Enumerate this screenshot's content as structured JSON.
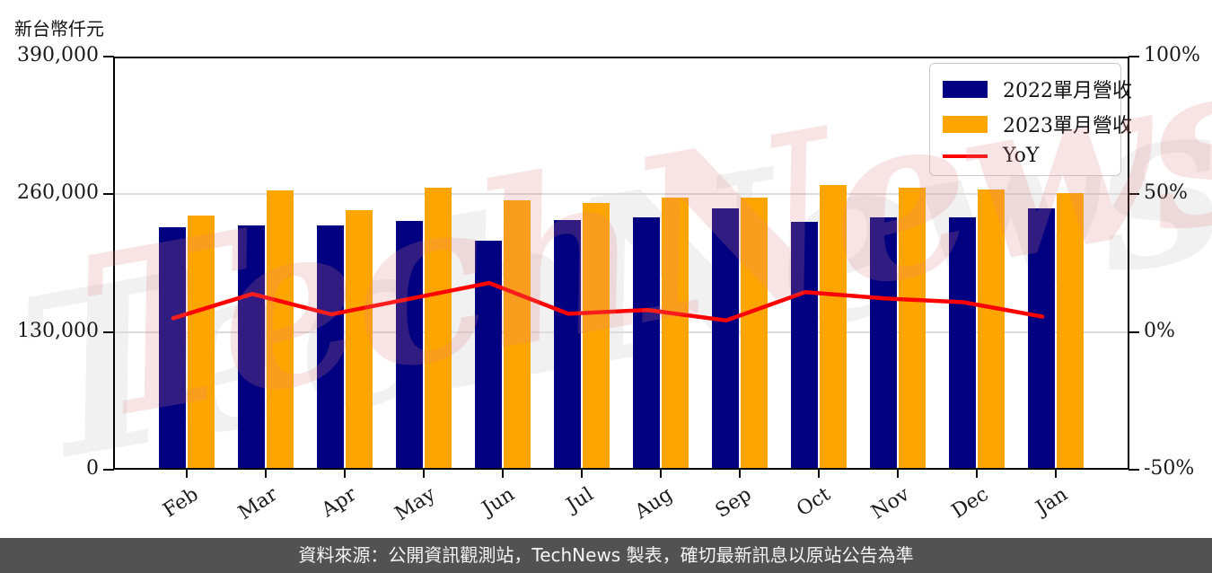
{
  "unit_label": "新台幣仟元",
  "watermark": {
    "text": "TechNews"
  },
  "footer": {
    "text": "資料來源：公開資訊觀測站，TechNews 製表，確切最新訊息以原站公告為準"
  },
  "legend": {
    "items": [
      {
        "label": "2022單月營收",
        "color": "#000080",
        "type": "bar"
      },
      {
        "label": "2023單月營收",
        "color": "#FFA500",
        "type": "bar"
      },
      {
        "label": "YoY",
        "color": "#FF0000",
        "type": "line"
      }
    ]
  },
  "colors": {
    "bar_2022": "#000080",
    "bar_2023": "#FFA500",
    "yoy_line": "#FF0000",
    "grid": "#dcdcdc",
    "spine": "#000000",
    "footer_bg": "#525252",
    "watermark_pink": "#eeb7b7"
  },
  "chart_data": {
    "type": "bar",
    "subtype": "grouped bars with overlaid line (dual axis)",
    "categories": [
      "Feb",
      "Mar",
      "Apr",
      "May",
      "Jun",
      "Jul",
      "Aug",
      "Sep",
      "Oct",
      "Nov",
      "Dec",
      "Jan"
    ],
    "series": [
      {
        "name": "2022單月營收",
        "type": "bar",
        "axis": "left",
        "color": "#000080",
        "values": [
          229000,
          230500,
          231000,
          235000,
          216000,
          235500,
          238000,
          246500,
          234000,
          238000,
          238500,
          246500
        ]
      },
      {
        "name": "2023單月營收",
        "type": "bar",
        "axis": "left",
        "color": "#FFA500",
        "values": [
          240000,
          264000,
          245000,
          266000,
          254500,
          252000,
          257000,
          257000,
          268500,
          266000,
          264500,
          261000
        ]
      },
      {
        "name": "YoY",
        "type": "line",
        "axis": "right",
        "color": "#FF0000",
        "values": [
          5.0,
          13.8,
          6.4,
          12.1,
          17.8,
          6.6,
          8.0,
          4.2,
          14.5,
          12.2,
          10.8,
          5.6
        ]
      }
    ],
    "left_axis": {
      "label": "新台幣仟元",
      "min": 0,
      "max": 390000,
      "ticks": [
        {
          "value": 0,
          "label": "0"
        },
        {
          "value": 130000,
          "label": "130,000"
        },
        {
          "value": 260000,
          "label": "260,000"
        },
        {
          "value": 390000,
          "label": "390,000"
        }
      ]
    },
    "right_axis": {
      "unit": "%",
      "min": -50,
      "max": 100,
      "ticks": [
        {
          "value": -50,
          "label": "-50%"
        },
        {
          "value": 0,
          "label": "0%"
        },
        {
          "value": 50,
          "label": "50%"
        },
        {
          "value": 100,
          "label": "100%"
        }
      ]
    },
    "grid_values": [
      130000,
      260000
    ],
    "legend_position": "upper right",
    "x_labels_rotated": true
  }
}
